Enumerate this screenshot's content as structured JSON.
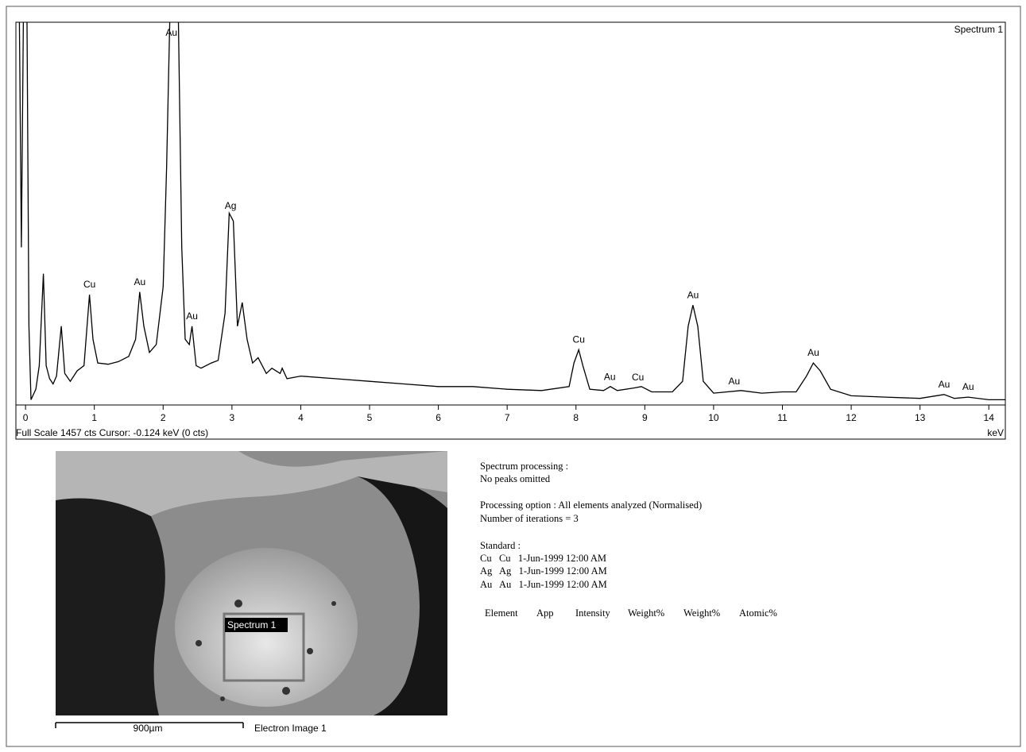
{
  "chart_data": {
    "type": "line",
    "title": "Spectrum 1",
    "x_label": "keV",
    "status": "Full Scale 1457 cts  Cursor: -0.124 keV (0 cts)",
    "color": "#000000",
    "x": [
      -0.14,
      -0.09,
      -0.06,
      -0.03,
      0.02,
      0.05,
      0.08,
      0.15,
      0.2,
      0.26,
      0.3,
      0.35,
      0.4,
      0.45,
      0.52,
      0.57,
      0.65,
      0.75,
      0.85,
      0.93,
      0.98,
      1.05,
      1.2,
      1.35,
      1.5,
      1.6,
      1.66,
      1.72,
      1.8,
      1.9,
      2.0,
      2.05,
      2.1,
      2.16,
      2.22,
      2.27,
      2.32,
      2.38,
      2.42,
      2.48,
      2.55,
      2.7,
      2.8,
      2.9,
      2.96,
      3.02,
      3.08,
      3.15,
      3.22,
      3.3,
      3.38,
      3.5,
      3.58,
      3.7,
      3.73,
      3.8,
      4.0,
      4.5,
      5.0,
      5.5,
      6.0,
      6.5,
      7.0,
      7.5,
      7.9,
      7.97,
      8.04,
      8.1,
      8.2,
      8.4,
      8.5,
      8.6,
      8.85,
      8.95,
      9.1,
      9.4,
      9.55,
      9.63,
      9.7,
      9.77,
      9.85,
      10.0,
      10.4,
      10.7,
      11.0,
      11.2,
      11.35,
      11.45,
      11.55,
      11.7,
      12.0,
      12.5,
      13.0,
      13.35,
      13.5,
      13.7,
      14.0,
      14.24
    ],
    "values": [
      1500,
      1500,
      600,
      1500,
      1500,
      300,
      20,
      60,
      150,
      500,
      150,
      100,
      80,
      110,
      300,
      120,
      90,
      130,
      150,
      420,
      250,
      160,
      155,
      165,
      185,
      250,
      430,
      300,
      200,
      230,
      450,
      900,
      1500,
      1500,
      1500,
      600,
      250,
      230,
      300,
      150,
      140,
      160,
      170,
      350,
      730,
      700,
      300,
      390,
      250,
      160,
      180,
      120,
      140,
      120,
      140,
      100,
      110,
      100,
      90,
      80,
      70,
      70,
      60,
      55,
      70,
      160,
      210,
      150,
      60,
      55,
      70,
      55,
      65,
      70,
      50,
      50,
      90,
      300,
      380,
      300,
      90,
      45,
      55,
      45,
      50,
      50,
      110,
      160,
      130,
      60,
      35,
      30,
      25,
      40,
      25,
      30,
      20,
      20
    ],
    "xlim": [
      -0.14,
      14.24
    ],
    "ylim": [
      0,
      1457
    ],
    "xticks": [
      0,
      1,
      2,
      3,
      4,
      5,
      6,
      7,
      8,
      9,
      10,
      11,
      12,
      13,
      14
    ],
    "annotations": [
      {
        "label": "Cu",
        "x": 0.93
      },
      {
        "label": "Au",
        "x": 1.66
      },
      {
        "label": "Au",
        "x": 2.12
      },
      {
        "label": "Au",
        "x": 2.42
      },
      {
        "label": "Ag",
        "x": 2.98
      },
      {
        "label": "Cu",
        "x": 8.04
      },
      {
        "label": "Au",
        "x": 8.49
      },
      {
        "label": "Cu",
        "x": 8.9
      },
      {
        "label": "Au",
        "x": 9.7
      },
      {
        "label": "Au",
        "x": 10.3
      },
      {
        "label": "Au",
        "x": 11.45
      },
      {
        "label": "Au",
        "x": 13.35
      },
      {
        "label": "Au",
        "x": 13.7
      }
    ]
  },
  "image": {
    "caption": "Electron Image 1",
    "scale_bar": "900µm",
    "region_label": "Spectrum 1"
  },
  "report": {
    "lines": [
      "Spectrum processing :",
      "No peaks omitted",
      "Processing option : All elements analyzed (Normalised)",
      "Number of iterations = 3",
      "Standard :",
      "Cu   Cu   1-Jun-1999 12:00 AM",
      "Ag   Ag   1-Jun-1999 12:00 AM",
      "Au   Au   1-Jun-1999 12:00 AM"
    ],
    "table_header": [
      "Element",
      "App",
      "Intensity",
      "Weight%",
      "Weight%",
      "Atomic%"
    ]
  }
}
